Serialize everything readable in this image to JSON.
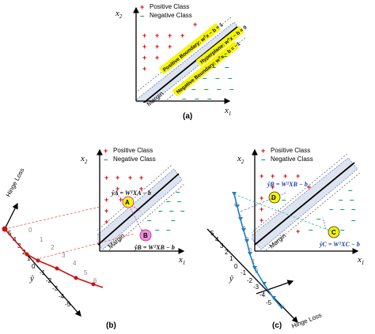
{
  "panel_a": {
    "caption": "(a)",
    "y_axis": "x",
    "y_axis_sub": "2",
    "x_axis": "x",
    "x_axis_sub": "1",
    "legend_positive": "Positive Class",
    "legend_negative": "Negative Class",
    "positive_boundary": "Positive Boundary: wᵀx − b = 1",
    "hyperplane": "Hyperplane: wᵀx − b = 0",
    "negative_boundary": "Negative Boundary: wᵀx − b = −1",
    "margin": "Margin"
  },
  "panel_b": {
    "caption": "(b)",
    "y_axis": "x",
    "y_axis_sub": "2",
    "x_axis": "x",
    "x_axis_sub": "1",
    "legend_positive": "Positive Class",
    "legend_negative": "Negative Class",
    "margin": "Margin",
    "point_a": "A",
    "point_b": "B",
    "eq_a": "ŷA = WᵀXA − b",
    "eq_b": "ŷB = WᵀXB − b",
    "hinge_loss": "Hinge Loss",
    "y_hat": "ŷ"
  },
  "panel_c": {
    "caption": "(c)",
    "y_axis": "x",
    "y_axis_sub": "2",
    "x_axis": "x",
    "x_axis_sub": "1",
    "legend_positive": "Positive Class",
    "legend_negative": "Negative Class",
    "margin": "Margin",
    "point_c": "C",
    "point_d": "D",
    "eq_b": "ŷB = WᵀXB − b",
    "eq_c": "ŷC = WᵀXC − b",
    "hinge_loss": "Hinge Loss",
    "y_hat": "ŷ"
  },
  "colors": {
    "positive": "#e00000",
    "negative": "#0aa05a",
    "band": "#dde4f0",
    "boundary_highlight": "#f5f500",
    "loss_b": "#cc1111",
    "loss_c": "#1f7fc0",
    "marker_a": "#f5f500",
    "marker_b": "#f090d8"
  }
}
